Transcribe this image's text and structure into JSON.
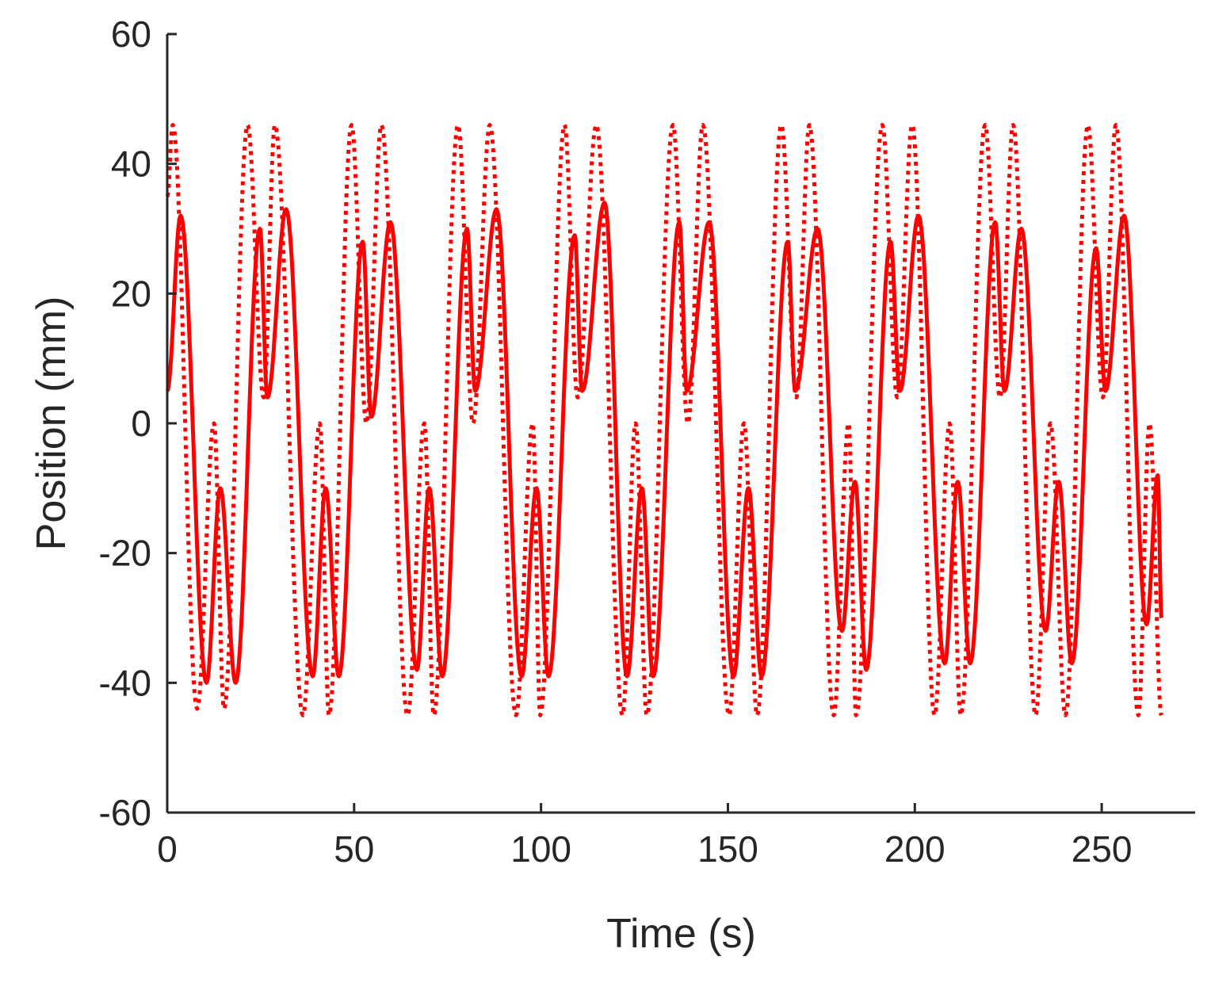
{
  "chart_data": {
    "type": "line",
    "title": "",
    "xlabel": "Time (s)",
    "ylabel": "Position (mm)",
    "xlim": [
      0,
      275
    ],
    "ylim": [
      -60,
      60
    ],
    "x_ticks": [
      0,
      50,
      100,
      150,
      200,
      250
    ],
    "y_ticks": [
      -60,
      -40,
      -20,
      0,
      20,
      40,
      60
    ],
    "x_tick_labels": [
      "0",
      "50",
      "100",
      "150",
      "200",
      "250"
    ],
    "y_tick_labels": [
      "-60",
      "-40",
      "-20",
      "0",
      "20",
      "40",
      "60"
    ],
    "grid": false,
    "legend": "none",
    "colors": {
      "series": "#ff0000",
      "axis": "#262626"
    },
    "series": [
      {
        "style": "solid",
        "x": [
          0,
          3.6,
          10.5,
          14.2,
          18.3,
          24.8,
          26.8,
          31.8,
          38.9,
          42.4,
          45.9,
          52.3,
          54.6,
          59.7,
          66.8,
          70.1,
          73.6,
          80.2,
          82.4,
          88.1,
          94.8,
          98.8,
          102.0,
          109.0,
          111.0,
          117.0,
          123.0,
          127.0,
          130.0,
          137.0,
          139.0,
          145.0,
          151.5,
          155.5,
          159.0,
          166.0,
          168.0,
          174.0,
          180.5,
          184.0,
          187.0,
          193.5,
          196.0,
          201.0,
          208.0,
          211.5,
          214.8,
          221.5,
          224.0,
          228.5,
          235.0,
          238.5,
          242.0,
          248.5,
          251.0,
          256.0,
          262.0,
          265.0,
          266.0
        ],
        "y": [
          5,
          32,
          -40,
          -10,
          -40,
          30,
          4,
          33,
          -39,
          -10,
          -39,
          28,
          1,
          31,
          -38,
          -10,
          -39,
          30,
          5,
          33,
          -39,
          -10,
          -39,
          29,
          5,
          34,
          -39,
          -10,
          -39,
          31,
          5,
          31,
          -39,
          -10,
          -39,
          28,
          5,
          30,
          -32,
          -9,
          -38,
          28,
          5,
          32,
          -37,
          -9,
          -37,
          31,
          5,
          30,
          -32,
          -9,
          -37,
          27,
          5,
          32,
          -31,
          -8,
          -30
        ]
      },
      {
        "style": "dotted",
        "x": [
          0,
          1.5,
          8.0,
          12.5,
          15.2,
          21.5,
          25.8,
          28.8,
          36.3,
          40.8,
          43.3,
          49.3,
          53.3,
          57.3,
          64.3,
          68.8,
          71.3,
          77.8,
          81.8,
          86.3,
          93.3,
          97.8,
          99.8,
          106.3,
          109.8,
          114.8,
          121.8,
          125.3,
          128.3,
          135.3,
          139.3,
          143.3,
          150.3,
          154.3,
          157.8,
          164.3,
          168.3,
          171.8,
          178.3,
          182.3,
          184.3,
          191.3,
          195.3,
          199.3,
          205.3,
          209.3,
          212.3,
          218.8,
          222.8,
          226.3,
          232.3,
          236.3,
          240.3,
          246.3,
          250.3,
          253.8,
          259.8,
          262.8,
          266.0
        ],
        "y": [
          35,
          46,
          -44,
          0,
          -44,
          46,
          4,
          46,
          -45,
          0,
          -45,
          46,
          0,
          46,
          -45,
          0,
          -45,
          46,
          0,
          46,
          -45,
          0,
          -45,
          46,
          4,
          46,
          -45,
          0,
          -45,
          46,
          0,
          46,
          -45,
          0,
          -45,
          46,
          4,
          46,
          -45,
          0,
          -45,
          46,
          4,
          46,
          -45,
          0,
          -45,
          46,
          4,
          46,
          -45,
          0,
          -45,
          46,
          4,
          46,
          -45,
          0,
          -45
        ]
      }
    ]
  }
}
